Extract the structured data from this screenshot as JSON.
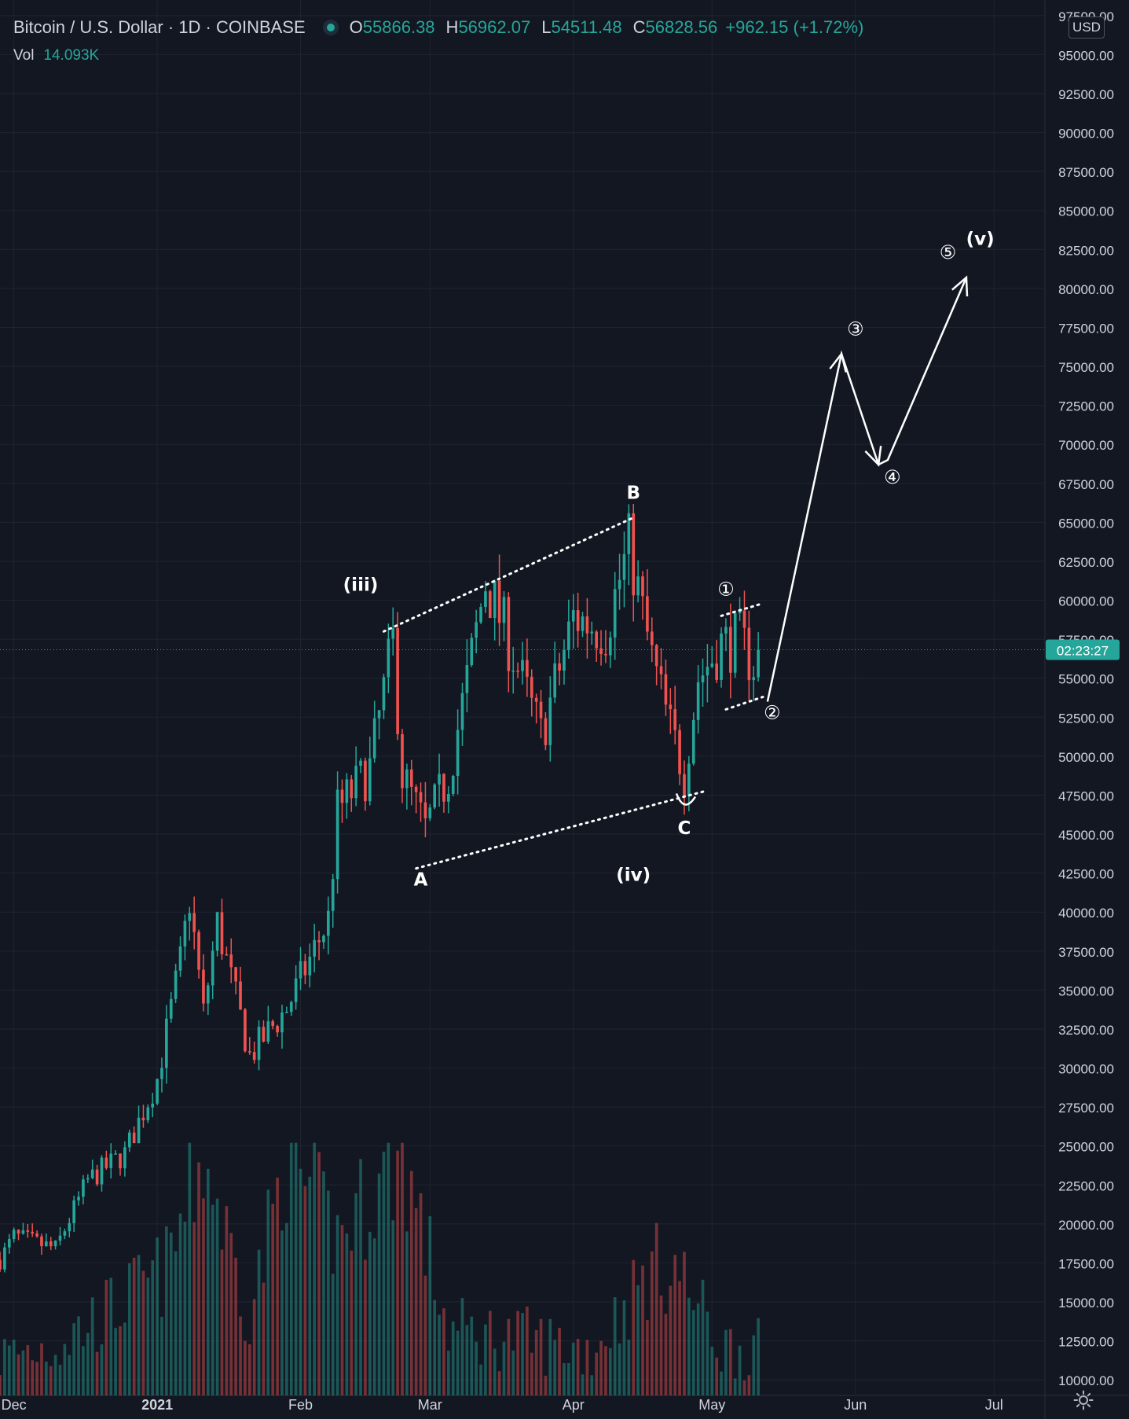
{
  "header": {
    "symbol": "Bitcoin / U.S. Dollar · 1D · COINBASE",
    "open_label": "O",
    "open": "55866.38",
    "high_label": "H",
    "high": "56962.07",
    "low_label": "L",
    "low": "54511.48",
    "close_label": "C",
    "close": "56828.56",
    "change": "+962.15 (+1.72%)",
    "vol_label": "Vol",
    "vol_value": "14.093K",
    "currency_button": "USD"
  },
  "price_tag": {
    "label": "02:23:27",
    "price": 56828.56,
    "color": "#26a69a"
  },
  "colors": {
    "up": "#26a69a",
    "down": "#ef5350",
    "background": "#131722",
    "grid": "#1f2430",
    "axis_text": "#d1d4dc",
    "annotation": "#ffffff"
  },
  "icons": {
    "settings": "gear-icon",
    "status": "market-open-dot-icon"
  },
  "chart_data": {
    "type": "candlestick",
    "title": "Bitcoin / U.S. Dollar · 1D · COINBASE",
    "yaxis": {
      "ticks": [
        "10000.00",
        "12500.00",
        "15000.00",
        "17500.00",
        "20000.00",
        "22500.00",
        "25000.00",
        "27500.00",
        "30000.00",
        "32500.00",
        "35000.00",
        "37500.00",
        "40000.00",
        "42500.00",
        "45000.00",
        "47500.00",
        "50000.00",
        "52500.00",
        "55000.00",
        "57500.00",
        "60000.00",
        "62500.00",
        "65000.00",
        "67500.00",
        "70000.00",
        "72500.00",
        "75000.00",
        "77500.00",
        "80000.00",
        "82500.00",
        "85000.00",
        "87500.00",
        "90000.00",
        "92500.00",
        "95000.00",
        "97500.00"
      ],
      "range": [
        9000,
        98500
      ]
    },
    "xaxis": {
      "range": [
        "2020-11-28",
        "2021-07-12"
      ],
      "labels": [
        {
          "text": "Dec",
          "date": "2020-12-01"
        },
        {
          "text": "2021",
          "date": "2021-01-01"
        },
        {
          "text": "Feb",
          "date": "2021-02-01"
        },
        {
          "text": "Mar",
          "date": "2021-03-01"
        },
        {
          "text": "Apr",
          "date": "2021-04-01"
        },
        {
          "text": "May",
          "date": "2021-05-01"
        },
        {
          "text": "Jun",
          "date": "2021-06-01"
        },
        {
          "text": "Jul",
          "date": "2021-07-01"
        }
      ]
    },
    "closes": [
      {
        "date": "2020-11-28",
        "close": 17700
      },
      {
        "date": "2020-12-01",
        "close": 19200
      },
      {
        "date": "2020-12-10",
        "close": 18400
      },
      {
        "date": "2020-12-17",
        "close": 22800
      },
      {
        "date": "2020-12-25",
        "close": 24500
      },
      {
        "date": "2021-01-01",
        "close": 29300
      },
      {
        "date": "2021-01-06",
        "close": 36800
      },
      {
        "date": "2021-01-08",
        "close": 40800
      },
      {
        "date": "2021-01-11",
        "close": 33500
      },
      {
        "date": "2021-01-14",
        "close": 39300
      },
      {
        "date": "2021-01-21",
        "close": 30800
      },
      {
        "date": "2021-01-29",
        "close": 33800
      },
      {
        "date": "2021-02-07",
        "close": 39500
      },
      {
        "date": "2021-02-09",
        "close": 46500
      },
      {
        "date": "2021-02-16",
        "close": 49200
      },
      {
        "date": "2021-02-21",
        "close": 57400
      },
      {
        "date": "2021-02-23",
        "close": 48800
      },
      {
        "date": "2021-02-28",
        "close": 45300
      },
      {
        "date": "2021-03-05",
        "close": 48800
      },
      {
        "date": "2021-03-09",
        "close": 54800
      },
      {
        "date": "2021-03-13",
        "close": 61200
      },
      {
        "date": "2021-03-17",
        "close": 58200
      },
      {
        "date": "2021-03-25",
        "close": 51300
      },
      {
        "date": "2021-04-01",
        "close": 58900
      },
      {
        "date": "2021-04-08",
        "close": 58100
      },
      {
        "date": "2021-04-13",
        "close": 63500
      },
      {
        "date": "2021-04-18",
        "close": 56200
      },
      {
        "date": "2021-04-22",
        "close": 51700
      },
      {
        "date": "2021-04-25",
        "close": 49000
      },
      {
        "date": "2021-04-28",
        "close": 55000
      },
      {
        "date": "2021-05-03",
        "close": 57200
      },
      {
        "date": "2021-05-07",
        "close": 57400
      },
      {
        "date": "2021-05-10",
        "close": 55900
      },
      {
        "date": "2021-05-11",
        "close": 56828.56
      }
    ],
    "volume": [
      {
        "date": "2020-11-28",
        "volume": 11800
      },
      {
        "date": "2020-12-10",
        "volume": 12600
      },
      {
        "date": "2020-12-22",
        "volume": 14800
      },
      {
        "date": "2021-01-03",
        "volume": 17500
      },
      {
        "date": "2021-01-11",
        "volume": 25000
      },
      {
        "date": "2021-01-21",
        "volume": 14500
      },
      {
        "date": "2021-01-29",
        "volume": 25000
      },
      {
        "date": "2021-02-09",
        "volume": 19600
      },
      {
        "date": "2021-02-23",
        "volume": 25000
      },
      {
        "date": "2021-03-05",
        "volume": 13500
      },
      {
        "date": "2021-03-20",
        "volume": 13000
      },
      {
        "date": "2021-04-05",
        "volume": 12200
      },
      {
        "date": "2021-04-18",
        "volume": 17500
      },
      {
        "date": "2021-04-23",
        "volume": 17700
      },
      {
        "date": "2021-05-03",
        "volume": 12400
      },
      {
        "date": "2021-05-11",
        "volume": 12400
      }
    ],
    "annotations": {
      "labels": [
        {
          "text": "(iii)",
          "date": "2021-02-14",
          "price": 60600
        },
        {
          "text": "B",
          "date": "2021-04-14",
          "price": 66500
        },
        {
          "text": "A",
          "date": "2021-02-27",
          "price": 41700
        },
        {
          "text": "C",
          "date": "2021-04-25",
          "price": 45000
        },
        {
          "text": "(iv)",
          "date": "2021-04-14",
          "price": 42000
        },
        {
          "text": "①",
          "date": "2021-05-04",
          "price": 60300
        },
        {
          "text": "②",
          "date": "2021-05-14",
          "price": 52400
        },
        {
          "text": "③",
          "date": "2021-06-01",
          "price": 77000
        },
        {
          "text": "④",
          "date": "2021-06-09",
          "price": 67500
        },
        {
          "text": "⑤",
          "date": "2021-06-21",
          "price": 81900
        },
        {
          "text": "(v)",
          "date": "2021-06-28",
          "price": 82800
        }
      ],
      "dotted_lines": [
        {
          "from": {
            "date": "2021-02-19",
            "price": 58000
          },
          "to": {
            "date": "2021-04-14",
            "price": 65300
          }
        },
        {
          "from": {
            "date": "2021-02-26",
            "price": 42800
          },
          "to": {
            "date": "2021-04-30",
            "price": 47800
          }
        },
        {
          "from": {
            "date": "2021-05-03",
            "price": 59000
          },
          "to": {
            "date": "2021-05-12",
            "price": 59800
          }
        },
        {
          "from": {
            "date": "2021-05-04",
            "price": 53000
          },
          "to": {
            "date": "2021-05-12",
            "price": 53800
          }
        }
      ],
      "projection_path": [
        {
          "date": "2021-05-13",
          "price": 53500
        },
        {
          "date": "2021-05-29",
          "price": 75800
        },
        {
          "date": "2021-06-06",
          "price": 68700
        },
        {
          "date": "2021-06-08",
          "price": 69000
        },
        {
          "date": "2021-06-25",
          "price": 80700
        }
      ]
    }
  }
}
